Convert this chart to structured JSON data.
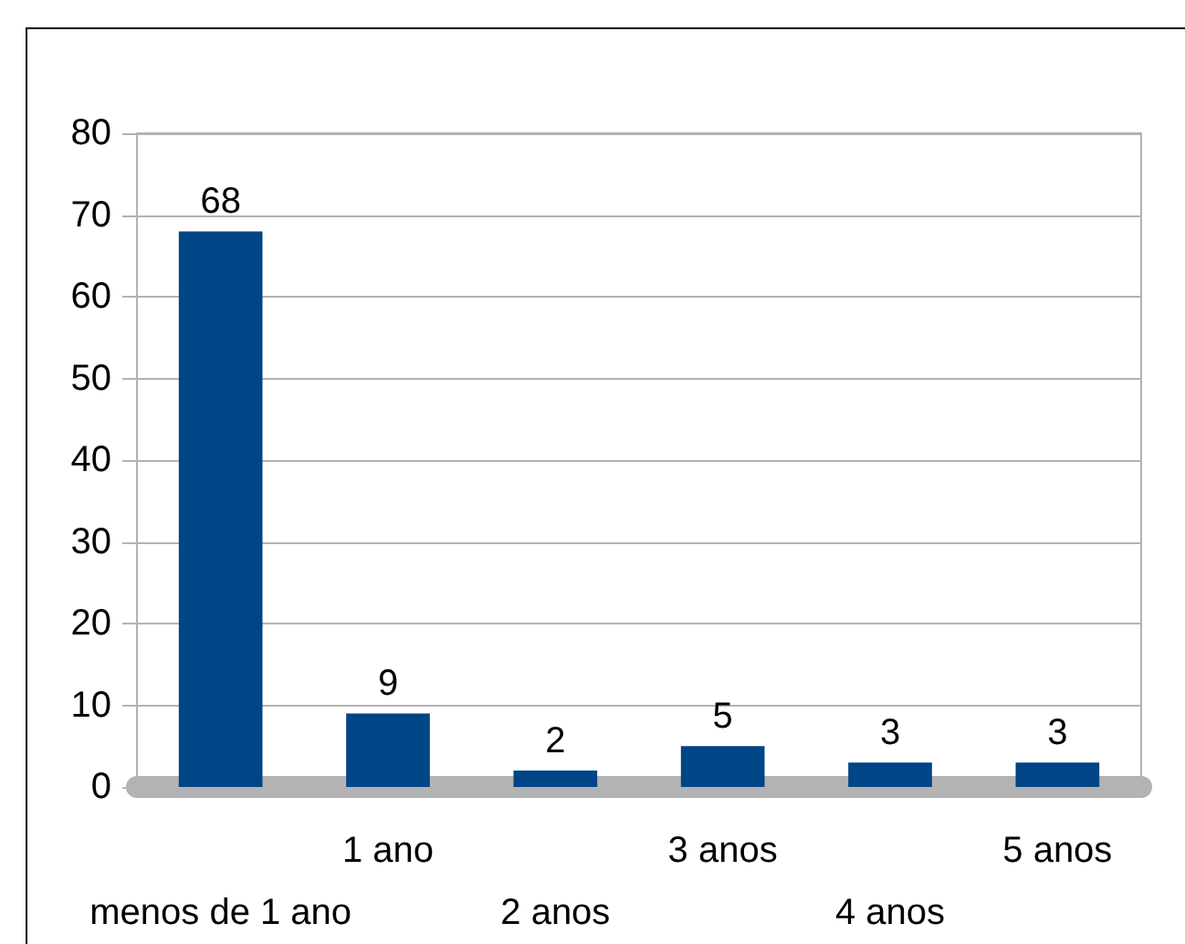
{
  "chart_data": {
    "type": "bar",
    "categories": [
      "menos de 1 ano",
      "1 ano",
      "2 anos",
      "3 anos",
      "4 anos",
      "5 anos"
    ],
    "values": [
      68,
      9,
      2,
      5,
      3,
      3
    ],
    "color": "#004586",
    "ylim": [
      0,
      80
    ],
    "yticks": [
      0,
      10,
      20,
      30,
      40,
      50,
      60,
      70,
      80
    ],
    "grid": "y",
    "data_labels": true
  }
}
